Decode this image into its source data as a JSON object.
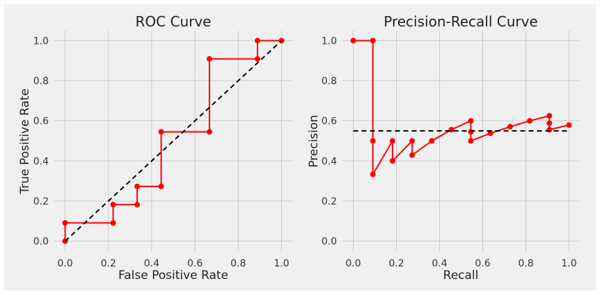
{
  "colors": {
    "figure_background": "#f0f0f0",
    "axes_background": "#f0f0f0",
    "grid": "#cbcbcb",
    "curve": "#ff0000",
    "baseline": "#000000"
  },
  "chart_data": [
    {
      "type": "line",
      "title": "ROC Curve",
      "xlabel": "False Positive Rate",
      "ylabel": "True Positive Rate",
      "xlim": [
        -0.05,
        1.05
      ],
      "ylim": [
        -0.05,
        1.05
      ],
      "xticks": [
        0.0,
        0.2,
        0.4,
        0.6,
        0.8,
        1.0
      ],
      "yticks": [
        0.0,
        0.2,
        0.4,
        0.6,
        0.8,
        1.0
      ],
      "xtick_labels": [
        "0.0",
        "0.2",
        "0.4",
        "0.6",
        "0.8",
        "1.0"
      ],
      "ytick_labels": [
        "0.0",
        "0.2",
        "0.4",
        "0.6",
        "0.8",
        "1.0"
      ],
      "grid": true,
      "series": [
        {
          "style": "red line with markers",
          "x": [
            0.0,
            0.0,
            0.222,
            0.222,
            0.333,
            0.333,
            0.444,
            0.444,
            0.667,
            0.667,
            0.889,
            0.889,
            1.0
          ],
          "y": [
            0.0,
            0.091,
            0.091,
            0.182,
            0.182,
            0.273,
            0.273,
            0.545,
            0.545,
            0.909,
            0.909,
            1.0,
            1.0
          ]
        },
        {
          "style": "black dashed diagonal",
          "x": [
            0.0,
            1.0
          ],
          "y": [
            0.0,
            1.0
          ]
        }
      ]
    },
    {
      "type": "line",
      "title": "Precision-Recall Curve",
      "xlabel": "Recall",
      "ylabel": "Precision",
      "xlim": [
        -0.05,
        1.05
      ],
      "ylim": [
        -0.05,
        1.05
      ],
      "xticks": [
        0.0,
        0.2,
        0.4,
        0.6,
        0.8,
        1.0
      ],
      "yticks": [
        0.0,
        0.2,
        0.4,
        0.6,
        0.8,
        1.0
      ],
      "xtick_labels": [
        "0.0",
        "0.2",
        "0.4",
        "0.6",
        "0.8",
        "1.0"
      ],
      "ytick_labels": [
        "0.0",
        "0.2",
        "0.4",
        "0.6",
        "0.8",
        "1.0"
      ],
      "grid": true,
      "series": [
        {
          "style": "red line with markers",
          "x": [
            0.0,
            0.091,
            0.091,
            0.091,
            0.182,
            0.182,
            0.273,
            0.273,
            0.364,
            0.455,
            0.545,
            0.545,
            0.545,
            0.636,
            0.727,
            0.818,
            0.909,
            0.909,
            0.909,
            1.0
          ],
          "y": [
            1.0,
            1.0,
            0.5,
            0.333,
            0.5,
            0.4,
            0.5,
            0.429,
            0.5,
            0.556,
            0.6,
            0.545,
            0.5,
            0.538,
            0.571,
            0.6,
            0.625,
            0.588,
            0.556,
            0.579
          ]
        },
        {
          "style": "black dashed horizontal baseline",
          "x": [
            0.0,
            1.0
          ],
          "y": [
            0.55,
            0.55
          ]
        }
      ]
    }
  ]
}
